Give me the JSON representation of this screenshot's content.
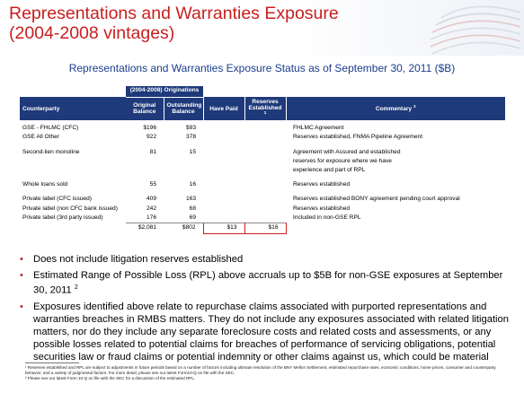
{
  "header": {
    "title_line1": "Representations and Warranties Exposure",
    "title_line2": "(2004-2008 vintages)"
  },
  "subtitle": "Representations and Warranties Exposure Status as of September 30, 2011 ($B)",
  "table": {
    "band_label": "(2004-2008) Originations",
    "columns": {
      "counterparty": "Counterparty",
      "original_line1": "Original",
      "original_line2": "Balance",
      "outstanding_line1": "Outstanding",
      "outstanding_line2": "Balance",
      "have_paid": "Have Paid",
      "reserves_line1": "Reserves",
      "reserves_line2": "Established",
      "reserves_sup": "1",
      "commentary": "Commentary",
      "commentary_sup": "2"
    },
    "rows": [
      {
        "counterparty": "GSE - FHLMC (CFC)",
        "original": "$196",
        "outstanding": "$93",
        "paid": "",
        "reserves": "",
        "comment_lines": [
          "FHLMC Agreement"
        ]
      },
      {
        "counterparty": "GSE All Other",
        "original": "922",
        "outstanding": "378",
        "paid": "",
        "reserves": "",
        "comment_lines": [
          "Reserves established, FNMA Pipeline Agreement"
        ]
      },
      {
        "counterparty": "Second-lien monoline",
        "original": "81",
        "outstanding": "15",
        "paid": "",
        "reserves": "",
        "comment_lines": [
          "Agreement with Assured and established",
          "reserves for exposure where we have",
          "experience and part of RPL"
        ]
      },
      {
        "counterparty": "Whole loans sold",
        "original": "55",
        "outstanding": "16",
        "paid": "",
        "reserves": "",
        "comment_lines": [
          "Reserves established"
        ]
      },
      {
        "counterparty": "Private label (CFC issued)",
        "original": "409",
        "outstanding": "163",
        "paid": "",
        "reserves": "",
        "comment_lines": [
          "Reserves established BONY agreement pending court approval"
        ]
      },
      {
        "counterparty": "Private label (non CFC bank issued)",
        "original": "242",
        "outstanding": "68",
        "paid": "",
        "reserves": "",
        "comment_lines": [
          "Reserves established"
        ]
      },
      {
        "counterparty": "Private label (3rd party issued)",
        "original": "176",
        "outstanding": "69",
        "paid": "",
        "reserves": "",
        "comment_lines": [
          "Included in non-GSE RPL"
        ]
      }
    ],
    "totals": {
      "original": "$2,081",
      "outstanding": "$802",
      "paid": "$13",
      "reserves": "$16"
    }
  },
  "bullets": [
    {
      "text": "Does not include litigation reserves established",
      "sup": ""
    },
    {
      "text": "Estimated Range of Possible Loss (RPL) above accruals up to $5B for non-GSE exposures at September 30, 2011 ",
      "sup": "2"
    },
    {
      "text": "Exposures identified above relate to repurchase claims associated with purported representations and warranties breaches in RMBS matters. They do not include any exposures associated with related litigation matters, nor do they include any separate foreclosure costs and related costs and assessments, or any possible losses related to potential claims for breaches of performance of servicing obligations, potential securities law or fraud claims or potential indemnity or other claims against us, which could be material",
      "sup": ""
    }
  ],
  "footnotes": [
    "¹ Reserves established and RPL are subject to adjustments in future periods based on a number of factors including ultimate resolution of the BNY Mellon Settlement, estimated repurchase rates, economic conditions, home prices, consumer and counterparty behavior, and a variety of judgmental factors. For more detail, please see our latest Form10-Q on file with the SEC.",
    "² Please see our latest Form 10-Q on file with the SEC for a discussion of the estimated RPL."
  ],
  "colors": {
    "title": "#c8201f",
    "subtitle": "#1a3d8c",
    "table_header": "#1f3a7a",
    "bullet": "#c8201f"
  }
}
